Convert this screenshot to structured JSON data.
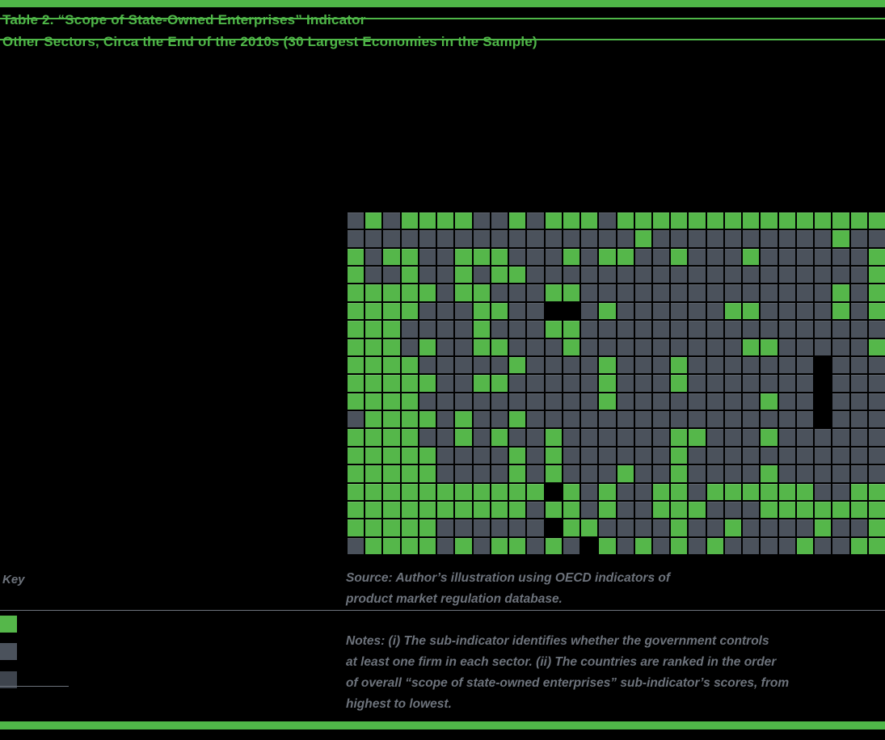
{
  "title": {
    "line1": "Table 2. “Scope of State-Owned Enterprises” Indicator",
    "line2": "Other Sectors, Circa the End of the 2010s (30 Largest Economies in the Sample)"
  },
  "key": {
    "label": "Key",
    "items": [
      {
        "swatch": "green",
        "color": "#55b74a"
      },
      {
        "swatch": "gray",
        "color": "#4b525c"
      },
      {
        "swatch": "black",
        "color": "#3e444d"
      }
    ]
  },
  "source": {
    "line1": "Source: Author’s illustration using OECD indicators of",
    "line2": "product market regulation database."
  },
  "notes": {
    "line1": "Notes: (i) The sub-indicator identifies whether the government controls",
    "line2": "at least one firm in each sector. (ii) The countries are ranked in the order",
    "line3": "of overall “scope of state-owned enterprises” sub-indicator’s scores, from",
    "line4": "highest to lowest."
  },
  "colors": {
    "background": "#000000",
    "title_green": "#4fb748",
    "text_gray": "#6d737c",
    "cell_green": "#55b74a",
    "cell_gray": "#4b525c",
    "cell_black": "#000000"
  },
  "chart_data": {
    "type": "heatmap",
    "title": "Scope of State-Owned Enterprises Indicator, Other Sectors, circa end of the 2010s",
    "rows": 19,
    "columns": 30,
    "cell_encoding": {
      "G": "green",
      "g": "gray",
      "B": "black"
    },
    "legend_colors": {
      "green": "#55b74a",
      "gray": "#4b525c",
      "black": "#000000"
    },
    "cells": [
      "gGgGGGGggGgGGGgGGGGGGGGGGGGGGG",
      "ggggggggggggggggGggggggggggGgg",
      "GgGGggGGGgggGgGGggGgggGggggggG",
      "GggGggGgGGgggggggggggggggggggG",
      "GGGGGgGGgggGGggggggggggggggGgG",
      "GGGGgggGGggBBgGggggggGGggggGgG",
      "GGGggggGgggGGggggggggggggggggg",
      "GGGgGggGGgggGgggggggggGGgggggG",
      "GGGGgggggGggggGgggGgggggggBggg",
      "GGGGGggGGgggggGgggGgggggggBggg",
      "GGGGggggggggggGggggggggGggBggg",
      "gGGGGgGggGggggggggggggggggBggg",
      "GGGGggGgGggGggggggGGgggGgggggg",
      "GGGGGggggGgGggggggGggggggggggg",
      "GGGGGggggGgGgggGggGggggGgggggg",
      "GGGGGGGGGGGBGgGggGGgGGGGGGggGG",
      "GGGGGGGGGGgGGgGggGGGgggGGGGGGG",
      "GGGGGggggggBGGggggGggGggggGggG",
      "gGGGGgGgGGgGgBGgGgGgGggggGggGG"
    ]
  }
}
